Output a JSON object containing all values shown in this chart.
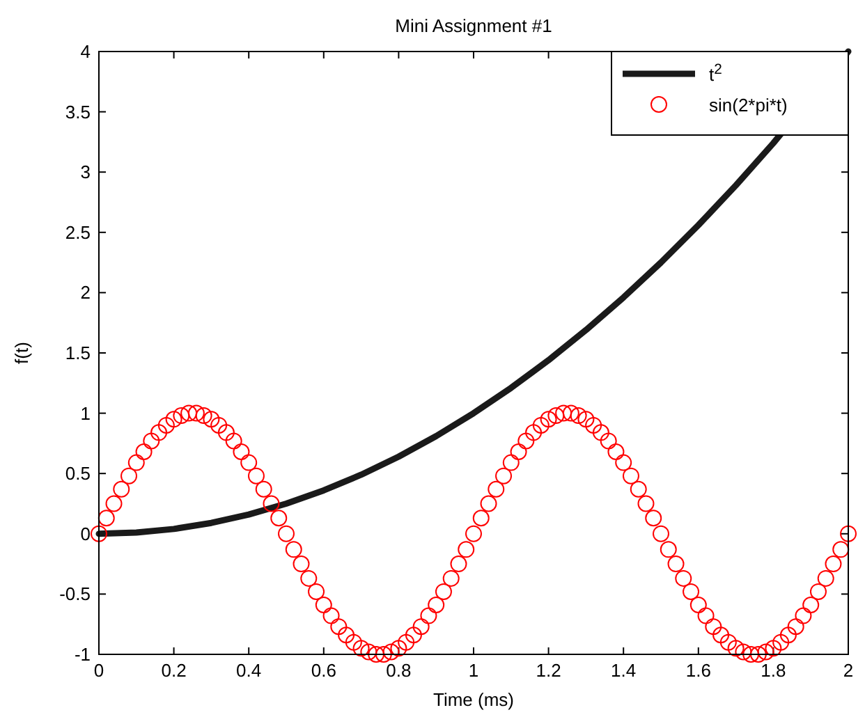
{
  "chart_data": {
    "type": "line",
    "title": "Mini Assignment #1",
    "xlabel": "Time (ms)",
    "ylabel": "f(t)",
    "xlim": [
      0,
      2
    ],
    "xticks": [
      0,
      0.2,
      0.4,
      0.6,
      0.8,
      1,
      1.2,
      1.4,
      1.6,
      1.8,
      2
    ],
    "ylim": [
      -1,
      4
    ],
    "yticks": [
      -1,
      -0.5,
      0,
      0.5,
      1,
      1.5,
      2,
      2.5,
      3,
      3.5,
      4
    ],
    "grid": false,
    "legend": "top right",
    "series": [
      {
        "name": "t$^{2}$",
        "color": "#1a1a1a",
        "marker": "none",
        "line_style": "solid",
        "x": [
          0,
          0.1,
          0.2,
          0.3,
          0.4,
          0.5,
          0.6,
          0.7,
          0.8,
          0.9,
          1,
          1.1,
          1.2,
          1.3,
          1.4,
          1.5,
          1.6,
          1.7,
          1.8,
          1.9,
          2
        ],
        "values": [
          0,
          0.01,
          0.04,
          0.09,
          0.16,
          0.25,
          0.36,
          0.49,
          0.64,
          0.81,
          1,
          1.21,
          1.44,
          1.69,
          1.96,
          2.25,
          2.56,
          2.89,
          3.24,
          null,
          4
        ]
      },
      {
        "name": "sin(2*pi*t)",
        "type": "scatter",
        "color": "#ff0000",
        "marker": "circle",
        "x": [
          0,
          0.02,
          0.04,
          0.06,
          0.08,
          0.1,
          0.12,
          0.14,
          0.16,
          0.18,
          0.2,
          0.22,
          0.24,
          0.26,
          0.28,
          0.3,
          0.32,
          0.34,
          0.36,
          0.38,
          0.4,
          0.42,
          0.44,
          0.46,
          0.48,
          0.5,
          0.52,
          0.54,
          0.56,
          0.58,
          0.6,
          0.62,
          0.64,
          0.66,
          0.68,
          0.7,
          0.72,
          0.74,
          0.76,
          0.78,
          0.8,
          0.82,
          0.84,
          0.86,
          0.88,
          0.9,
          0.92,
          0.94,
          0.96,
          0.98,
          1,
          1.02,
          1.04,
          1.06,
          1.08,
          1.1,
          1.12,
          1.14,
          1.16,
          1.18,
          1.2,
          1.22,
          1.24,
          1.26,
          1.28,
          1.3,
          1.32,
          1.34,
          1.36,
          1.38,
          1.4,
          1.42,
          1.44,
          1.46,
          1.48,
          1.5,
          1.52,
          1.54,
          1.56,
          1.58,
          1.6,
          1.62,
          1.64,
          1.66,
          1.68,
          1.7,
          1.72,
          1.74,
          1.76,
          1.78,
          1.8,
          1.82,
          1.84,
          1.86,
          1.88,
          1.9,
          1.92,
          1.94,
          1.96,
          1.98,
          2
        ],
        "values": [
          0,
          0.13,
          0.25,
          0.37,
          0.48,
          0.59,
          0.68,
          0.77,
          0.84,
          0.9,
          0.95,
          0.98,
          1,
          1,
          0.98,
          0.95,
          0.9,
          0.84,
          0.77,
          0.68,
          0.59,
          0.48,
          0.37,
          0.25,
          0.13,
          0,
          -0.13,
          -0.25,
          -0.37,
          -0.48,
          -0.59,
          -0.68,
          -0.77,
          -0.84,
          -0.9,
          -0.95,
          -0.98,
          -1,
          -1,
          -0.98,
          -0.95,
          -0.9,
          -0.84,
          -0.77,
          -0.68,
          -0.59,
          -0.48,
          -0.37,
          -0.25,
          -0.13,
          0,
          0.13,
          0.25,
          0.37,
          0.48,
          0.59,
          0.68,
          0.77,
          0.84,
          0.9,
          0.95,
          0.98,
          1,
          1,
          0.98,
          0.95,
          0.9,
          0.84,
          0.77,
          0.68,
          0.59,
          0.48,
          0.37,
          0.25,
          0.13,
          0,
          -0.13,
          -0.25,
          -0.37,
          -0.48,
          -0.59,
          -0.68,
          -0.77,
          -0.84,
          -0.9,
          -0.95,
          -0.98,
          -1,
          -1,
          -0.98,
          -0.95,
          -0.9,
          -0.84,
          -0.77,
          -0.68,
          -0.59,
          -0.48,
          -0.37,
          -0.25,
          -0.13,
          0
        ]
      }
    ]
  }
}
